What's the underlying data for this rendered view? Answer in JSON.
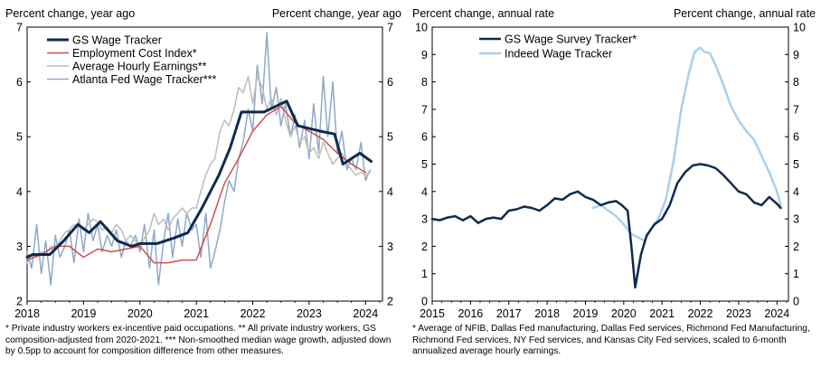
{
  "charts": [
    {
      "left_axis_title": "Percent change, year ago",
      "right_axis_title": "Percent change, year ago",
      "footnote": "* Private industry workers ex-incentive paid occupations. ** All private industry workers, GS composition-adjusted from 2020-2021. *** Non-smoothed median wage growth, adjusted down by 0.5pp to account for composition difference from other measures."
    },
    {
      "left_axis_title": "Percent change, annual rate",
      "right_axis_title": "Percent change, annual rate",
      "footnote": "* Average of NFIB, Dallas Fed manufacturing, Dallas Fed services, Richmond Fed Manufacturing, Richmond Fed services, NY Fed services, and Kansas City Fed services, scaled to 6-month annualized average hourly earnings."
    }
  ],
  "chart_data": [
    {
      "type": "line",
      "title": "",
      "xlabel": "",
      "ylabel": "Percent change, year ago",
      "xlim": [
        2018.0,
        2024.3
      ],
      "ylim": [
        2,
        7
      ],
      "x_ticks": [
        2018,
        2019,
        2020,
        2021,
        2022,
        2023,
        2024
      ],
      "y_ticks": [
        2,
        3,
        4,
        5,
        6,
        7
      ],
      "grid": false,
      "legend": "top-left",
      "series": [
        {
          "name": "GS Wage Tracker",
          "color": "#0d2b4e",
          "width": 3,
          "x": [
            2018.0,
            2018.1,
            2018.4,
            2018.65,
            2018.9,
            2019.1,
            2019.3,
            2019.6,
            2019.85,
            2020.0,
            2020.3,
            2020.6,
            2020.85,
            2021.1,
            2021.4,
            2021.6,
            2021.8,
            2022.0,
            2022.2,
            2022.4,
            2022.6,
            2022.8,
            2023.0,
            2023.2,
            2023.45,
            2023.6,
            2023.75,
            2023.9,
            2024.1
          ],
          "y": [
            2.8,
            2.85,
            2.85,
            3.1,
            3.4,
            3.25,
            3.45,
            3.1,
            3.0,
            3.05,
            3.05,
            3.15,
            3.25,
            3.7,
            4.3,
            4.8,
            5.45,
            5.45,
            5.45,
            5.55,
            5.65,
            5.2,
            5.15,
            5.1,
            5.05,
            4.5,
            4.6,
            4.7,
            4.55
          ]
        },
        {
          "name": "Employment Cost Index*",
          "color": "#d0504b",
          "width": 1.5,
          "x": [
            2018.0,
            2018.25,
            2018.5,
            2018.75,
            2019.0,
            2019.25,
            2019.5,
            2019.75,
            2020.0,
            2020.25,
            2020.5,
            2020.75,
            2021.0,
            2021.25,
            2021.5,
            2021.75,
            2022.0,
            2022.25,
            2022.5,
            2022.75,
            2023.0,
            2023.25,
            2023.5,
            2023.75,
            2024.0
          ],
          "y": [
            2.75,
            2.85,
            3.0,
            3.0,
            2.8,
            2.95,
            2.9,
            2.95,
            3.0,
            2.7,
            2.7,
            2.75,
            2.75,
            3.4,
            4.15,
            4.6,
            5.1,
            5.4,
            5.55,
            5.25,
            5.1,
            4.95,
            4.7,
            4.5,
            4.35
          ]
        },
        {
          "name": "Average Hourly Earnings**",
          "color": "#bcbcbc",
          "width": 1.5,
          "x": [
            2018.0,
            2018.08,
            2018.17,
            2018.25,
            2018.33,
            2018.42,
            2018.5,
            2018.58,
            2018.67,
            2018.75,
            2018.83,
            2018.92,
            2019.0,
            2019.08,
            2019.17,
            2019.25,
            2019.33,
            2019.42,
            2019.5,
            2019.58,
            2019.67,
            2019.75,
            2019.83,
            2019.92,
            2020.0,
            2020.08,
            2020.17,
            2020.25,
            2020.33,
            2020.42,
            2020.5,
            2020.58,
            2020.67,
            2020.75,
            2020.83,
            2020.92,
            2021.0,
            2021.08,
            2021.17,
            2021.25,
            2021.33,
            2021.42,
            2021.5,
            2021.58,
            2021.67,
            2021.75,
            2021.83,
            2021.92,
            2022.0,
            2022.08,
            2022.17,
            2022.25,
            2022.33,
            2022.42,
            2022.5,
            2022.58,
            2022.67,
            2022.75,
            2022.83,
            2022.92,
            2023.0,
            2023.08,
            2023.17,
            2023.25,
            2023.33,
            2023.42,
            2023.5,
            2023.58,
            2023.67,
            2023.75,
            2023.83,
            2023.92,
            2024.0,
            2024.08
          ],
          "y": [
            2.7,
            2.85,
            2.8,
            2.9,
            2.85,
            3.0,
            2.95,
            3.1,
            3.25,
            3.3,
            3.4,
            3.35,
            3.3,
            3.4,
            3.5,
            3.45,
            3.3,
            3.35,
            3.25,
            3.4,
            3.3,
            3.1,
            3.2,
            3.1,
            3.0,
            3.15,
            3.3,
            3.6,
            3.4,
            3.5,
            3.3,
            3.5,
            3.6,
            3.7,
            3.6,
            3.7,
            3.7,
            4.0,
            4.3,
            4.5,
            4.6,
            5.1,
            5.3,
            5.2,
            5.5,
            5.9,
            5.8,
            6.1,
            5.6,
            6.1,
            5.9,
            5.5,
            5.7,
            5.4,
            5.7,
            5.3,
            5.0,
            5.2,
            4.9,
            5.0,
            4.7,
            4.8,
            4.6,
            4.9,
            4.7,
            4.5,
            4.6,
            4.7,
            4.5,
            4.4,
            4.3,
            4.35,
            4.3,
            4.35
          ]
        },
        {
          "name": "Atlanta Fed Wage Tracker***",
          "color": "#8fa8c8",
          "width": 1.5,
          "x": [
            2018.0,
            2018.08,
            2018.17,
            2018.25,
            2018.33,
            2018.42,
            2018.5,
            2018.58,
            2018.67,
            2018.75,
            2018.83,
            2018.92,
            2019.0,
            2019.08,
            2019.17,
            2019.25,
            2019.33,
            2019.42,
            2019.5,
            2019.58,
            2019.67,
            2019.75,
            2019.83,
            2019.92,
            2020.0,
            2020.08,
            2020.17,
            2020.25,
            2020.33,
            2020.42,
            2020.5,
            2020.58,
            2020.67,
            2020.75,
            2020.83,
            2020.92,
            2021.0,
            2021.08,
            2021.17,
            2021.25,
            2021.33,
            2021.42,
            2021.5,
            2021.58,
            2021.67,
            2021.75,
            2021.83,
            2021.92,
            2022.0,
            2022.08,
            2022.17,
            2022.25,
            2022.33,
            2022.42,
            2022.5,
            2022.58,
            2022.67,
            2022.75,
            2022.83,
            2022.92,
            2023.0,
            2023.08,
            2023.17,
            2023.25,
            2023.33,
            2023.42,
            2023.5,
            2023.58,
            2023.67,
            2023.75,
            2023.83,
            2023.92,
            2024.0,
            2024.08
          ],
          "y": [
            2.9,
            2.6,
            3.4,
            2.5,
            3.1,
            2.3,
            3.2,
            2.8,
            3.0,
            3.3,
            2.7,
            3.5,
            2.9,
            3.6,
            3.1,
            3.4,
            2.9,
            3.2,
            3.0,
            3.3,
            2.8,
            3.1,
            3.0,
            3.2,
            2.9,
            3.4,
            2.6,
            3.3,
            2.3,
            3.1,
            3.6,
            2.8,
            3.5,
            3.0,
            3.6,
            3.3,
            3.4,
            2.8,
            3.6,
            2.6,
            2.9,
            3.3,
            3.8,
            4.2,
            4.0,
            4.6,
            4.9,
            5.5,
            5.1,
            6.3,
            5.6,
            6.9,
            5.5,
            5.9,
            5.2,
            5.6,
            5.0,
            5.4,
            4.8,
            5.3,
            4.6,
            5.6,
            4.7,
            6.1,
            5.0,
            6.0,
            4.7,
            5.1,
            4.4,
            4.6,
            4.4,
            4.9,
            4.2,
            4.4
          ]
        }
      ]
    },
    {
      "type": "line",
      "title": "",
      "xlabel": "",
      "ylabel": "Percent change, annual rate",
      "xlim": [
        2015.0,
        2024.3
      ],
      "ylim": [
        0,
        10
      ],
      "x_ticks": [
        2015,
        2016,
        2017,
        2018,
        2019,
        2020,
        2021,
        2022,
        2023,
        2024
      ],
      "y_ticks": [
        0,
        1,
        2,
        3,
        4,
        5,
        6,
        7,
        8,
        9,
        10
      ],
      "grid": false,
      "legend": "top-left",
      "series": [
        {
          "name": "GS Wage Survey Tracker*",
          "color": "#0d2b4e",
          "width": 2.5,
          "x": [
            2015.0,
            2015.2,
            2015.4,
            2015.6,
            2015.8,
            2016.0,
            2016.2,
            2016.4,
            2016.6,
            2016.8,
            2017.0,
            2017.2,
            2017.4,
            2017.6,
            2017.8,
            2018.0,
            2018.2,
            2018.4,
            2018.6,
            2018.8,
            2019.0,
            2019.2,
            2019.4,
            2019.6,
            2019.8,
            2019.95,
            2020.1,
            2020.2,
            2020.3,
            2020.45,
            2020.6,
            2020.8,
            2021.0,
            2021.2,
            2021.4,
            2021.6,
            2021.8,
            2022.0,
            2022.2,
            2022.4,
            2022.6,
            2022.8,
            2023.0,
            2023.2,
            2023.4,
            2023.6,
            2023.8,
            2024.0,
            2024.1
          ],
          "y": [
            3.0,
            2.95,
            3.05,
            3.1,
            2.95,
            3.1,
            2.85,
            3.0,
            3.05,
            3.0,
            3.3,
            3.35,
            3.45,
            3.4,
            3.3,
            3.5,
            3.75,
            3.7,
            3.9,
            4.0,
            3.8,
            3.7,
            3.5,
            3.6,
            3.65,
            3.5,
            3.3,
            2.0,
            0.5,
            1.7,
            2.4,
            2.8,
            3.0,
            3.5,
            4.3,
            4.7,
            4.95,
            5.0,
            4.95,
            4.85,
            4.6,
            4.3,
            4.0,
            3.9,
            3.6,
            3.5,
            3.8,
            3.55,
            3.4
          ]
        },
        {
          "name": "Indeed Wage Tracker",
          "color": "#a8d0ee",
          "width": 2.5,
          "x": [
            2019.2,
            2019.4,
            2019.6,
            2019.8,
            2020.0,
            2020.2,
            2020.4,
            2020.55,
            2020.7,
            2020.9,
            2021.1,
            2021.3,
            2021.5,
            2021.7,
            2021.85,
            2022.0,
            2022.1,
            2022.25,
            2022.4,
            2022.6,
            2022.8,
            2023.0,
            2023.2,
            2023.4,
            2023.6,
            2023.8,
            2024.0,
            2024.1
          ],
          "y": [
            3.4,
            3.5,
            3.3,
            3.1,
            2.8,
            2.45,
            2.3,
            2.2,
            2.6,
            3.0,
            3.7,
            5.1,
            7.0,
            8.3,
            9.1,
            9.25,
            9.1,
            9.05,
            8.6,
            7.9,
            7.1,
            6.6,
            6.2,
            5.9,
            5.3,
            4.7,
            4.0,
            3.5
          ]
        }
      ]
    }
  ]
}
